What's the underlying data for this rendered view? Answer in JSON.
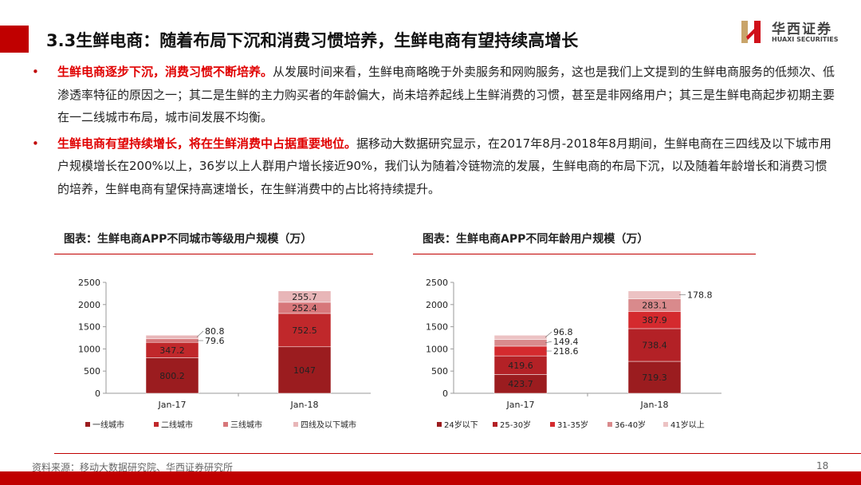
{
  "title": "3.3生鲜电商：随着布局下沉和消费习惯培养，生鲜电商有望持续高增长",
  "logo": {
    "cn": "华西证券",
    "en": "HUAXI SECURITIES"
  },
  "bullets": [
    {
      "highlight": "生鲜电商逐步下沉，消费习惯不断培养。",
      "text": "从发展时间来看，生鲜电商略晚于外卖服务和网购服务，这也是我们上文提到的生鲜电商服务的低频次、低渗透率特征的原因之一；其二是生鲜的主力购买者的年龄偏大，尚未培养起线上生鲜消费的习惯，甚至是非网络用户；其三是生鲜电商起步初期主要在一二线城市布局，城市间发展不均衡。"
    },
    {
      "highlight": "生鲜电商有望持续增长，将在生鲜消费中占据重要地位。",
      "text": "据移动大数据研究显示，在2017年8月-2018年8月期间，生鲜电商在三四线及以下城市用户规模增长在200%以上，36岁以上人群用户增长接近90%，我们认为随着冷链物流的发展，生鲜电商的布局下沉，以及随着年龄增长和消费习惯的培养，生鲜电商有望保持高速增长，在生鲜消费中的占比将持续提升。"
    }
  ],
  "chart_data": [
    {
      "type": "bar",
      "stacked": true,
      "title": "图表：生鲜电商APP不同城市等级用户规模（万）",
      "categories": [
        "Jan-17",
        "Jan-18"
      ],
      "ylim": [
        0,
        2500
      ],
      "yticks": [
        0,
        500,
        1000,
        1500,
        2000,
        2500
      ],
      "legend": "bottom",
      "series": [
        {
          "name": "一线城市",
          "values": [
            800.2,
            1047
          ],
          "labels": [
            "800.2",
            "1047"
          ],
          "color": "#9b1c1f"
        },
        {
          "name": "二线城市",
          "values": [
            347.2,
            752.5
          ],
          "labels": [
            "347.2",
            "752.5"
          ],
          "color": "#c0282b"
        },
        {
          "name": "三线城市",
          "values": [
            79.6,
            252.4
          ],
          "labels": [
            "79.6",
            "252.4"
          ],
          "color": "#d7777a"
        },
        {
          "name": "四线及以下城市",
          "values": [
            80.8,
            255.7
          ],
          "labels": [
            "80.8",
            "255.7"
          ],
          "color": "#e8b6b8"
        }
      ]
    },
    {
      "type": "bar",
      "stacked": true,
      "title": "图表：生鲜电商APP不同年龄用户规模（万）",
      "categories": [
        "Jan-17",
        "Jan-18"
      ],
      "ylim": [
        0,
        2500
      ],
      "yticks": [
        0,
        500,
        1000,
        1500,
        2000,
        2500
      ],
      "legend": "bottom",
      "series": [
        {
          "name": "24岁以下",
          "values": [
            423.7,
            719.3
          ],
          "labels": [
            "423.7",
            "719.3"
          ],
          "color": "#9b1c1f"
        },
        {
          "name": "25-30岁",
          "values": [
            419.6,
            738.4
          ],
          "labels": [
            "419.6",
            "738.4"
          ],
          "color": "#b32126"
        },
        {
          "name": "31-35岁",
          "values": [
            218.6,
            387.9
          ],
          "labels": [
            "218.6",
            "387.9"
          ],
          "color": "#d42a2e"
        },
        {
          "name": "36-40岁",
          "values": [
            149.4,
            283.1
          ],
          "labels": [
            "149.4",
            "283.1"
          ],
          "color": "#d98a8c"
        },
        {
          "name": "41岁以上",
          "values": [
            96.8,
            178.8
          ],
          "labels": [
            "96.8",
            "178.8"
          ],
          "color": "#ecc2c3"
        }
      ]
    }
  ],
  "source": "资料来源：移动大数据研究院、华西证券研究所",
  "page_number": "18"
}
